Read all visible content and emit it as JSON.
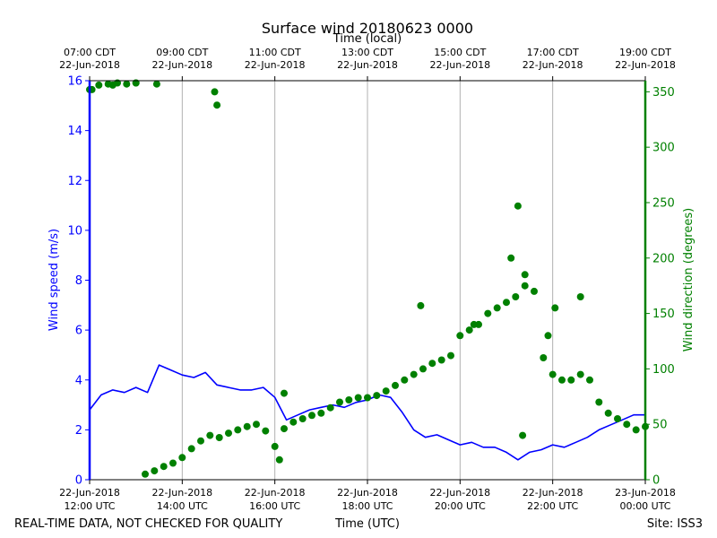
{
  "chart_data": {
    "type": "line",
    "title": "Surface wind 20180623 0000",
    "xlabel": "Time (UTC)",
    "x2label": "Time (local)",
    "ylabel": "Wind speed (m/s)",
    "y2label": "Wind direction (degrees)",
    "xlim_hours_utc": [
      12,
      24
    ],
    "ylim": [
      0,
      16
    ],
    "y2lim": [
      0,
      360
    ],
    "yticks": [
      0,
      2,
      4,
      6,
      8,
      10,
      12,
      14,
      16
    ],
    "y2ticks": [
      0,
      50,
      100,
      150,
      200,
      250,
      300,
      350
    ],
    "bottom_ticks": [
      {
        "h": 12,
        "line1": "22-Jun-2018",
        "line2": "12:00 UTC"
      },
      {
        "h": 14,
        "line1": "22-Jun-2018",
        "line2": "14:00 UTC"
      },
      {
        "h": 16,
        "line1": "22-Jun-2018",
        "line2": "16:00 UTC"
      },
      {
        "h": 18,
        "line1": "22-Jun-2018",
        "line2": "18:00 UTC"
      },
      {
        "h": 20,
        "line1": "22-Jun-2018",
        "line2": "20:00 UTC"
      },
      {
        "h": 22,
        "line1": "22-Jun-2018",
        "line2": "22:00 UTC"
      },
      {
        "h": 24,
        "line1": "23-Jun-2018",
        "line2": "00:00 UTC"
      }
    ],
    "top_ticks": [
      {
        "h": 12,
        "line1": "07:00 CDT",
        "line2": "22-Jun-2018"
      },
      {
        "h": 14,
        "line1": "09:00 CDT",
        "line2": "22-Jun-2018"
      },
      {
        "h": 16,
        "line1": "11:00 CDT",
        "line2": "22-Jun-2018"
      },
      {
        "h": 18,
        "line1": "13:00 CDT",
        "line2": "22-Jun-2018"
      },
      {
        "h": 20,
        "line1": "15:00 CDT",
        "line2": "22-Jun-2018"
      },
      {
        "h": 22,
        "line1": "17:00 CDT",
        "line2": "22-Jun-2018"
      },
      {
        "h": 24,
        "line1": "19:00 CDT",
        "line2": "22-Jun-2018"
      }
    ],
    "series": [
      {
        "name": "Wind speed",
        "axis": "left",
        "style": "line",
        "color": "#0000ff",
        "x": [
          12.0,
          12.25,
          12.5,
          12.75,
          13.0,
          13.25,
          13.5,
          13.75,
          14.0,
          14.25,
          14.5,
          14.75,
          15.0,
          15.25,
          15.5,
          15.75,
          16.0,
          16.25,
          16.5,
          16.75,
          17.0,
          17.25,
          17.5,
          17.75,
          18.0,
          18.25,
          18.5,
          18.75,
          19.0,
          19.25,
          19.5,
          19.75,
          20.0,
          20.25,
          20.5,
          20.75,
          21.0,
          21.25,
          21.5,
          21.75,
          22.0,
          22.25,
          22.5,
          22.75,
          23.0,
          23.25,
          23.5,
          23.75,
          24.0
        ],
        "values": [
          2.8,
          3.4,
          3.6,
          3.5,
          3.7,
          3.5,
          4.6,
          4.4,
          4.2,
          4.1,
          4.3,
          3.8,
          3.7,
          3.6,
          3.6,
          3.7,
          3.3,
          2.4,
          2.6,
          2.8,
          2.9,
          3.0,
          2.9,
          3.1,
          3.2,
          3.4,
          3.3,
          2.7,
          2.0,
          1.7,
          1.8,
          1.6,
          1.4,
          1.5,
          1.3,
          1.3,
          1.1,
          0.8,
          1.1,
          1.2,
          1.4,
          1.3,
          1.5,
          1.7,
          2.0,
          2.2,
          2.4,
          2.6,
          2.6
        ]
      },
      {
        "name": "Wind direction",
        "axis": "right",
        "style": "scatter",
        "color": "#008000",
        "x": [
          12.0,
          12.2,
          12.4,
          12.6,
          12.8,
          13.0,
          13.2,
          13.4,
          13.6,
          13.8,
          14.0,
          14.2,
          14.4,
          14.6,
          14.8,
          15.0,
          15.2,
          15.4,
          15.6,
          15.8,
          16.0,
          16.2,
          16.4,
          16.6,
          16.8,
          17.0,
          17.2,
          17.4,
          17.6,
          17.8,
          18.0,
          18.2,
          18.4,
          18.6,
          18.8,
          19.0,
          19.2,
          19.4,
          19.6,
          19.8,
          20.0,
          20.2,
          20.4,
          20.6,
          20.8,
          21.0,
          21.2,
          21.4,
          21.6,
          21.8,
          22.0,
          22.2,
          22.4,
          22.6,
          22.8,
          23.0,
          23.2,
          23.4,
          23.6,
          23.8,
          24.0,
          12.05,
          12.5,
          13.0,
          13.45,
          14.7,
          14.75,
          16.1,
          16.2,
          19.15,
          20.3,
          21.1,
          21.25,
          21.4,
          21.35,
          21.9,
          22.05,
          22.6
        ],
        "values": [
          352,
          356,
          357,
          358,
          357,
          358,
          5,
          8,
          12,
          15,
          20,
          28,
          35,
          40,
          38,
          42,
          45,
          48,
          50,
          44,
          30,
          46,
          52,
          55,
          58,
          60,
          65,
          70,
          72,
          74,
          74,
          76,
          80,
          85,
          90,
          95,
          100,
          105,
          108,
          112,
          130,
          135,
          140,
          150,
          155,
          160,
          165,
          175,
          170,
          110,
          95,
          90,
          90,
          95,
          90,
          70,
          60,
          55,
          50,
          45,
          48,
          352,
          356,
          358,
          357,
          350,
          338,
          18,
          78,
          157,
          140,
          200,
          247,
          185,
          40,
          130,
          155,
          165
        ]
      }
    ],
    "footer": {
      "left": "REAL-TIME DATA, NOT CHECKED FOR QUALITY",
      "center": "Time (UTC)",
      "right": "Site: ISS3"
    },
    "colors": {
      "speed": "#0000ff",
      "direction": "#008000",
      "grid": "#b0b0b0"
    }
  }
}
